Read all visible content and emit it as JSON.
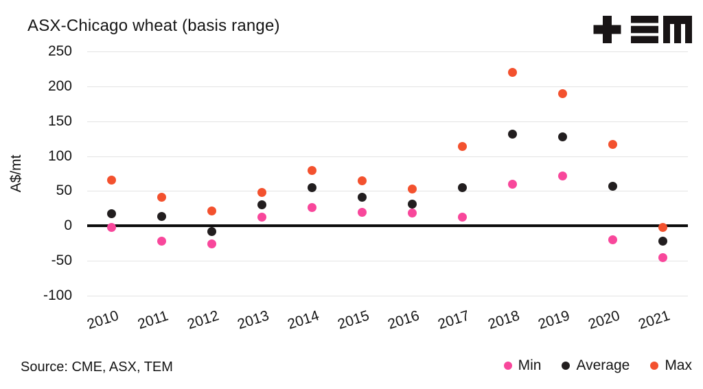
{
  "header": {
    "title": "ASX-Chicago wheat (basis range)",
    "logo_text": "TEM"
  },
  "footer": {
    "source": "Source: CME, ASX, TEM"
  },
  "chart_data": {
    "type": "scatter",
    "title": "ASX-Chicago wheat (basis range)",
    "xlabel": "",
    "ylabel": "A$/mt",
    "ylim": [
      -100,
      250
    ],
    "yticks": [
      250,
      200,
      150,
      100,
      50,
      0,
      -50,
      -100
    ],
    "grid": true,
    "zero_line": true,
    "legend_position": "bottom-right",
    "categories": [
      "2010",
      "2011",
      "2012",
      "2013",
      "2014",
      "2015",
      "2016",
      "2017",
      "2018",
      "2019",
      "2020",
      "2021"
    ],
    "series": [
      {
        "name": "Min",
        "color": "#f8479b",
        "values": [
          -2,
          -22,
          -26,
          13,
          26,
          19,
          18,
          13,
          60,
          72,
          -20,
          -45
        ]
      },
      {
        "name": "Average",
        "color": "#221e1f",
        "values": [
          17,
          14,
          -8,
          30,
          55,
          41,
          31,
          55,
          132,
          128,
          57,
          -22
        ]
      },
      {
        "name": "Max",
        "color": "#f3512e",
        "values": [
          66,
          41,
          21,
          48,
          79,
          65,
          53,
          114,
          220,
          190,
          117,
          -2
        ]
      }
    ],
    "colors": {
      "grid": "#e3e3e3",
      "zero_line": "#0d0d0d",
      "text": "#141414"
    }
  }
}
